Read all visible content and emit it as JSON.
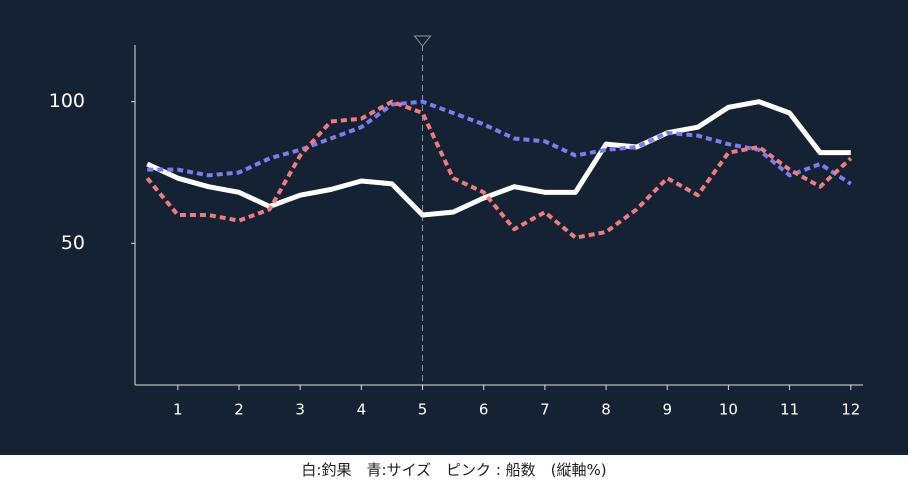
{
  "chart_data": {
    "type": "line",
    "x": [
      0.5,
      1,
      1.5,
      2,
      2.5,
      3,
      3.5,
      4,
      4.5,
      5,
      5.5,
      6,
      6.5,
      7,
      7.5,
      8,
      8.5,
      9,
      9.5,
      10,
      10.5,
      11,
      11.5,
      12
    ],
    "series": [
      {
        "color": "#ffffff",
        "style": "solid",
        "values": [
          78,
          73,
          70,
          68,
          63,
          67,
          69,
          72,
          71,
          60,
          61,
          66,
          70,
          68,
          68,
          85,
          84,
          89,
          91,
          98,
          100,
          96,
          82,
          82
        ]
      },
      {
        "color": "#7b7cf0",
        "style": "dashed",
        "values": [
          76,
          76,
          74,
          75,
          80,
          83,
          87,
          91,
          99,
          100,
          96,
          92,
          87,
          86,
          81,
          83,
          84,
          89,
          88,
          85,
          83,
          74,
          78,
          71
        ]
      },
      {
        "color": "#f07b7f",
        "style": "dashed",
        "values": [
          73,
          60,
          60,
          58,
          62,
          81,
          93,
          94,
          100,
          96,
          73,
          68,
          55,
          61,
          52,
          54,
          62,
          73,
          67,
          82,
          84,
          76,
          70,
          80
        ]
      }
    ],
    "xlim": [
      0.3,
      12.2
    ],
    "xticks": [
      1,
      2,
      3,
      4,
      5,
      6,
      7,
      8,
      9,
      10,
      11,
      12
    ],
    "ylim": [
      0,
      120
    ],
    "yticks": [
      50,
      100
    ],
    "marker_x": 5,
    "caption": "白:釣果　青:サイズ　ピンク : 船数　(縦軸%)"
  }
}
